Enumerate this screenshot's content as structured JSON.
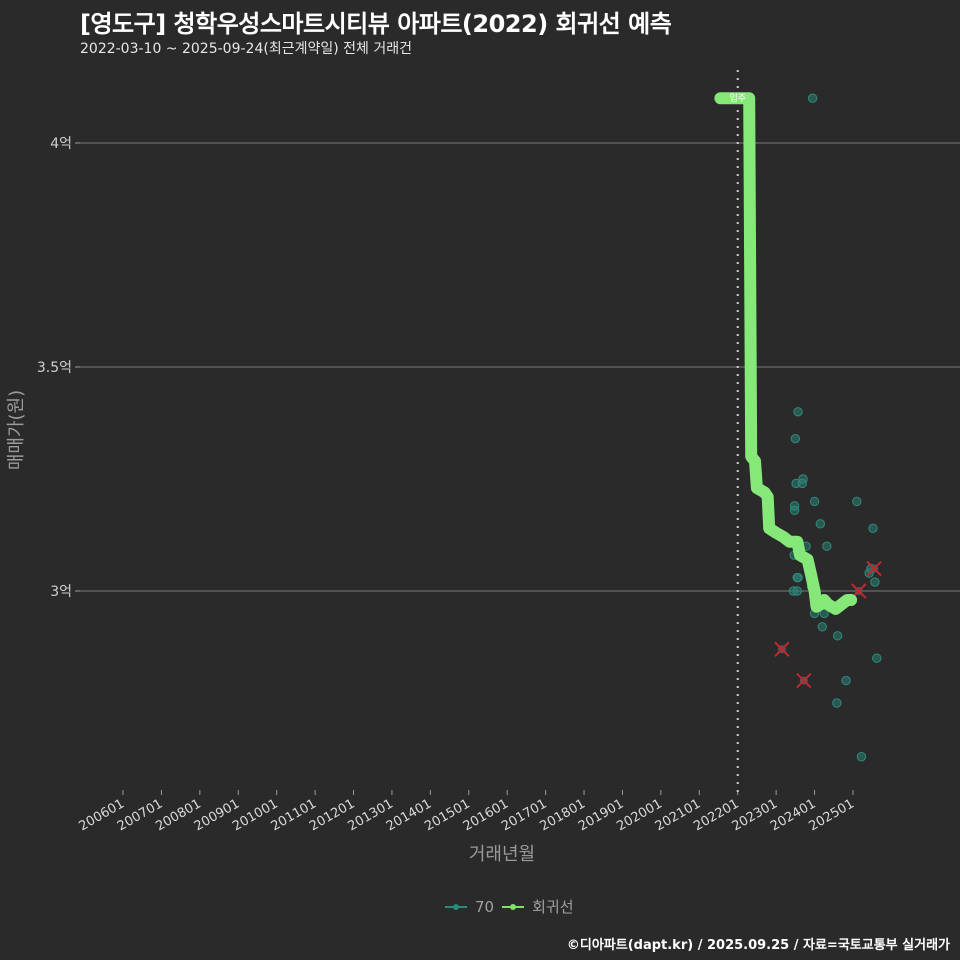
{
  "header": {
    "title": "[영도구] 청학우성스마트시티뷰 아파트(2022) 회귀선 예측",
    "subtitle": "2022-03-10 ~ 2025-09-24(최근계약일) 전체 거래건"
  },
  "legend": {
    "items": [
      {
        "label": "70",
        "color": "#2a8a7a"
      },
      {
        "label": "회귀선",
        "color": "#7fe06a"
      }
    ]
  },
  "footer": {
    "credit": "©디아파트(dapt.kr) / 2025.09.25 / 자료=국토교통부 실거래가"
  },
  "annotation": {
    "move_in_label": "입주",
    "move_in_x": "202201"
  },
  "colors": {
    "background": "#2a2a2b",
    "gridline": "#6a6a6a",
    "regression": "#86e878",
    "points": "#2a7f73",
    "outlier": "#c0282d"
  },
  "chart_data": {
    "type": "scatter",
    "title": "[영도구] 청학우성스마트시티뷰 아파트(2022) 회귀선 예측",
    "subtitle": "2022-03-10 ~ 2025-09-24(최근계약일) 전체 거래건",
    "xlabel": "거래년월",
    "ylabel": "매매가(원)",
    "x_ticks": [
      "200601",
      "200701",
      "200801",
      "200901",
      "201001",
      "201101",
      "201201",
      "201301",
      "201401",
      "201501",
      "201601",
      "201701",
      "201801",
      "201901",
      "202001",
      "202101",
      "202201",
      "202301",
      "202401",
      "202501"
    ],
    "y_ticks": [
      {
        "value": 3.0,
        "label": "3억"
      },
      {
        "value": 3.5,
        "label": "3.5억"
      },
      {
        "value": 4.0,
        "label": "4억"
      }
    ],
    "ylim": [
      2.55,
      4.15
    ],
    "grid": "horizontal major only",
    "legend_position": "bottom",
    "vline": {
      "x": 2022.0,
      "label": "입주",
      "style": "dotted"
    },
    "series": [
      {
        "name": "70",
        "kind": "points",
        "points": [
          {
            "x": 2023.95,
            "y": 4.1
          },
          {
            "x": 2023.57,
            "y": 3.4
          },
          {
            "x": 2023.5,
            "y": 3.34
          },
          {
            "x": 2023.52,
            "y": 3.24
          },
          {
            "x": 2023.7,
            "y": 3.25
          },
          {
            "x": 2023.68,
            "y": 3.24
          },
          {
            "x": 2023.48,
            "y": 3.19
          },
          {
            "x": 2023.48,
            "y": 3.18
          },
          {
            "x": 2024.0,
            "y": 3.2
          },
          {
            "x": 2024.15,
            "y": 3.15
          },
          {
            "x": 2025.1,
            "y": 3.2
          },
          {
            "x": 2025.52,
            "y": 3.14
          },
          {
            "x": 2024.32,
            "y": 3.1
          },
          {
            "x": 2023.78,
            "y": 3.1
          },
          {
            "x": 2023.47,
            "y": 3.08
          },
          {
            "x": 2023.55,
            "y": 3.03
          },
          {
            "x": 2023.57,
            "y": 3.03
          },
          {
            "x": 2023.92,
            "y": 3.03
          },
          {
            "x": 2023.92,
            "y": 3.01
          },
          {
            "x": 2023.45,
            "y": 3.0
          },
          {
            "x": 2023.55,
            "y": 3.0
          },
          {
            "x": 2025.42,
            "y": 3.04
          },
          {
            "x": 2025.57,
            "y": 3.02
          },
          {
            "x": 2025.47,
            "y": 3.05
          },
          {
            "x": 2024.0,
            "y": 2.95
          },
          {
            "x": 2024.25,
            "y": 2.95
          },
          {
            "x": 2024.2,
            "y": 2.92
          },
          {
            "x": 2024.6,
            "y": 2.9
          },
          {
            "x": 2025.62,
            "y": 2.85
          },
          {
            "x": 2024.82,
            "y": 2.8
          },
          {
            "x": 2024.58,
            "y": 2.75
          },
          {
            "x": 2025.22,
            "y": 2.63
          }
        ]
      },
      {
        "name": "이상거래(X)",
        "kind": "outlier-crosses",
        "points": [
          {
            "x": 2023.15,
            "y": 2.87
          },
          {
            "x": 2023.72,
            "y": 2.8
          },
          {
            "x": 2025.15,
            "y": 3.0
          },
          {
            "x": 2025.55,
            "y": 3.05
          }
        ]
      },
      {
        "name": "회귀선",
        "kind": "line",
        "points": [
          {
            "x": 2021.55,
            "y": 4.1
          },
          {
            "x": 2022.3,
            "y": 4.1
          },
          {
            "x": 2022.35,
            "y": 3.3
          },
          {
            "x": 2022.45,
            "y": 3.29
          },
          {
            "x": 2022.5,
            "y": 3.23
          },
          {
            "x": 2022.7,
            "y": 3.22
          },
          {
            "x": 2022.78,
            "y": 3.21
          },
          {
            "x": 2022.82,
            "y": 3.14
          },
          {
            "x": 2023.0,
            "y": 3.13
          },
          {
            "x": 2023.2,
            "y": 3.12
          },
          {
            "x": 2023.35,
            "y": 3.11
          },
          {
            "x": 2023.55,
            "y": 3.11
          },
          {
            "x": 2023.62,
            "y": 3.08
          },
          {
            "x": 2023.82,
            "y": 3.07
          },
          {
            "x": 2023.9,
            "y": 3.04
          },
          {
            "x": 2024.0,
            "y": 3.0
          },
          {
            "x": 2024.05,
            "y": 2.965
          },
          {
            "x": 2024.15,
            "y": 2.97
          },
          {
            "x": 2024.25,
            "y": 2.98
          },
          {
            "x": 2024.35,
            "y": 2.97
          },
          {
            "x": 2024.55,
            "y": 2.96
          },
          {
            "x": 2024.7,
            "y": 2.97
          },
          {
            "x": 2024.85,
            "y": 2.98
          },
          {
            "x": 2024.95,
            "y": 2.98
          }
        ]
      }
    ]
  }
}
